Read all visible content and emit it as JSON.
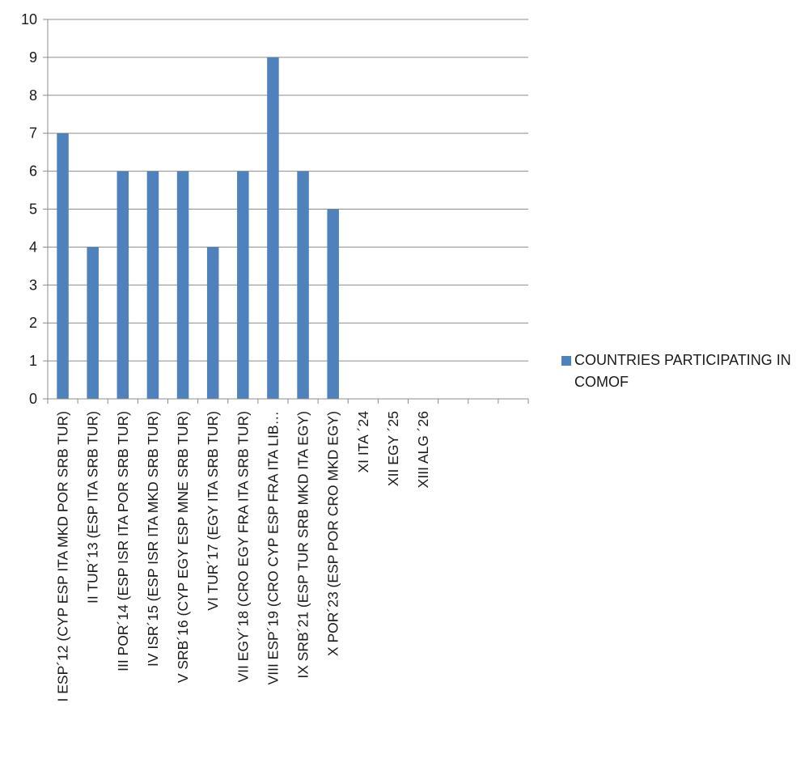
{
  "chart_data": {
    "type": "bar",
    "categories": [
      "I ESP´12 (CYP ESP ITA MKD POR SRB TUR)",
      "II TUR´13 (ESP ITA SRB TUR)",
      "III POR´14 (ESP ISR ITA POR SRB TUR)",
      "IV ISR´15 (ESP ISR ITA MKD SRB TUR)",
      "V SRB´16 (CYP EGY ESP MNE SRB TUR)",
      "VI TUR´17 (EGY ITA SRB TUR)",
      "VII EGY´18 (CRO EGY FRA ITA SRB TUR)",
      "VIII ESP´19 (CRO CYP ESP FRA ITA LIB…",
      "IX SRB´21 (ESP TUR SRB MKD ITA EGY)",
      "X POR´23 (ESP POR CRO MKD EGY)",
      "XI ITA ´24",
      "XII EGY ´25",
      "XIII ALG ´26",
      "",
      "",
      ""
    ],
    "series": [
      {
        "name": "COUNTRIES PARTICIPATING IN COMOF",
        "values": [
          7,
          4,
          6,
          6,
          6,
          4,
          6,
          9,
          6,
          5,
          null,
          null,
          null,
          null,
          null,
          null
        ],
        "color": "#4f81bd"
      }
    ],
    "ylim": [
      0,
      10
    ],
    "yticks": [
      0,
      1,
      2,
      3,
      4,
      5,
      6,
      7,
      8,
      9,
      10
    ],
    "grid": true,
    "legend_position": "right"
  }
}
